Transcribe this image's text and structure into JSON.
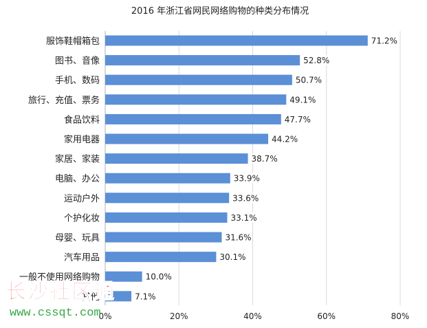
{
  "chart_data": {
    "type": "bar",
    "orientation": "horizontal",
    "title": "2016 年浙江省网民网络购物的种类分布情况",
    "xlabel": "",
    "ylabel": "",
    "categories": [
      "服饰鞋帽箱包",
      "图书、音像",
      "手机、数码",
      "旅行、充值、票务",
      "食品饮料",
      "家用电器",
      "家居、家装",
      "电脑、办公",
      "运动户外",
      "个护化妆",
      "母婴、玩具",
      "汽车用品",
      "一般不使用网络购物",
      "其他"
    ],
    "values": [
      71.2,
      52.8,
      50.7,
      49.1,
      47.7,
      44.2,
      38.7,
      33.9,
      33.6,
      33.1,
      31.6,
      30.1,
      10.0,
      7.1
    ],
    "value_labels": [
      "71.2%",
      "52.8%",
      "50.7%",
      "49.1%",
      "47.7%",
      "44.2%",
      "38.7%",
      "33.9%",
      "33.6%",
      "33.1%",
      "31.6%",
      "30.1%",
      "10.0%",
      "7.1%"
    ],
    "xlim": [
      0,
      80
    ],
    "xticks": [
      0,
      20,
      40,
      60,
      80
    ],
    "xtick_labels": [
      "0%",
      "20%",
      "40%",
      "60%",
      "80%"
    ],
    "grid": true,
    "legend": "none",
    "bar_color": "#5b8fd6"
  },
  "watermark": {
    "text": "长沙社区通",
    "url": "www.cssqt.com",
    "text_color": "#e8343a",
    "url_color": "#3aa84a"
  }
}
